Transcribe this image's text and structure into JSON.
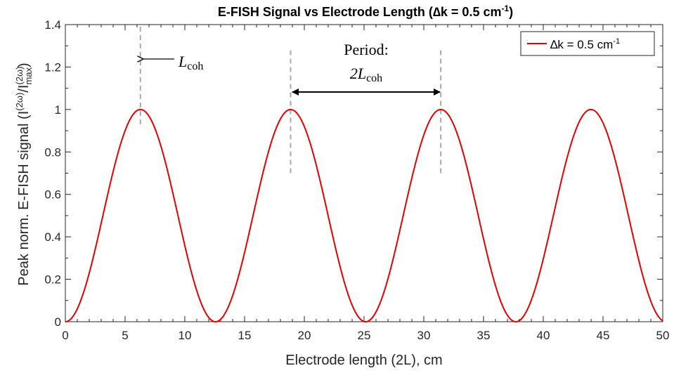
{
  "chart_data": {
    "type": "line",
    "title": {
      "prefix": "E-FISH Signal vs Electrode Length (",
      "delta_symbol": "∆",
      "middle": "k = 0.5 cm",
      "sup": "-1",
      "suffix": ")"
    },
    "xlabel": "Electrode length (2L), cm",
    "ylabel": {
      "prefix": "Peak norm. E-FISH signal (I",
      "sup1": "(2ω)",
      "slash": "/I",
      "sup2": "(2ω)",
      "sub2": "max",
      "suffix": ")"
    },
    "xlim": [
      0,
      50
    ],
    "ylim": [
      0,
      1.4
    ],
    "x_ticks": [
      "0",
      "5",
      "10",
      "15",
      "20",
      "25",
      "30",
      "35",
      "40",
      "45",
      "50"
    ],
    "y_ticks": [
      "0",
      "0.2",
      "0.4",
      "0.6",
      "0.8",
      "1",
      "1.2",
      "1.4"
    ],
    "series": [
      {
        "name": "∆k = 0.5 cm-1",
        "label": {
          "main": "∆k = 0.5 cm",
          "sup": "-1"
        },
        "color": "#e60000",
        "function": "sin^2(delta_k * x / 2)",
        "delta_k": 0.5,
        "x_range": [
          0,
          50
        ]
      }
    ],
    "legend": {
      "placement": "top-right"
    },
    "reference_lines": [
      {
        "x": 6.28,
        "y_range": [
          0.93,
          1.4
        ],
        "style": "dashed",
        "color": "#aaaaaa"
      },
      {
        "x": 18.85,
        "y_range": [
          0.7,
          1.28
        ],
        "style": "dashed",
        "color": "#aaaaaa"
      },
      {
        "x": 31.42,
        "y_range": [
          0.7,
          1.28
        ],
        "style": "dashed",
        "color": "#aaaaaa"
      }
    ],
    "annotations": {
      "lcoh": {
        "main": "L",
        "sub": "coh"
      },
      "period_label": "Period:",
      "period_value": {
        "main": "2L",
        "sub": "coh"
      }
    },
    "grid": false
  }
}
